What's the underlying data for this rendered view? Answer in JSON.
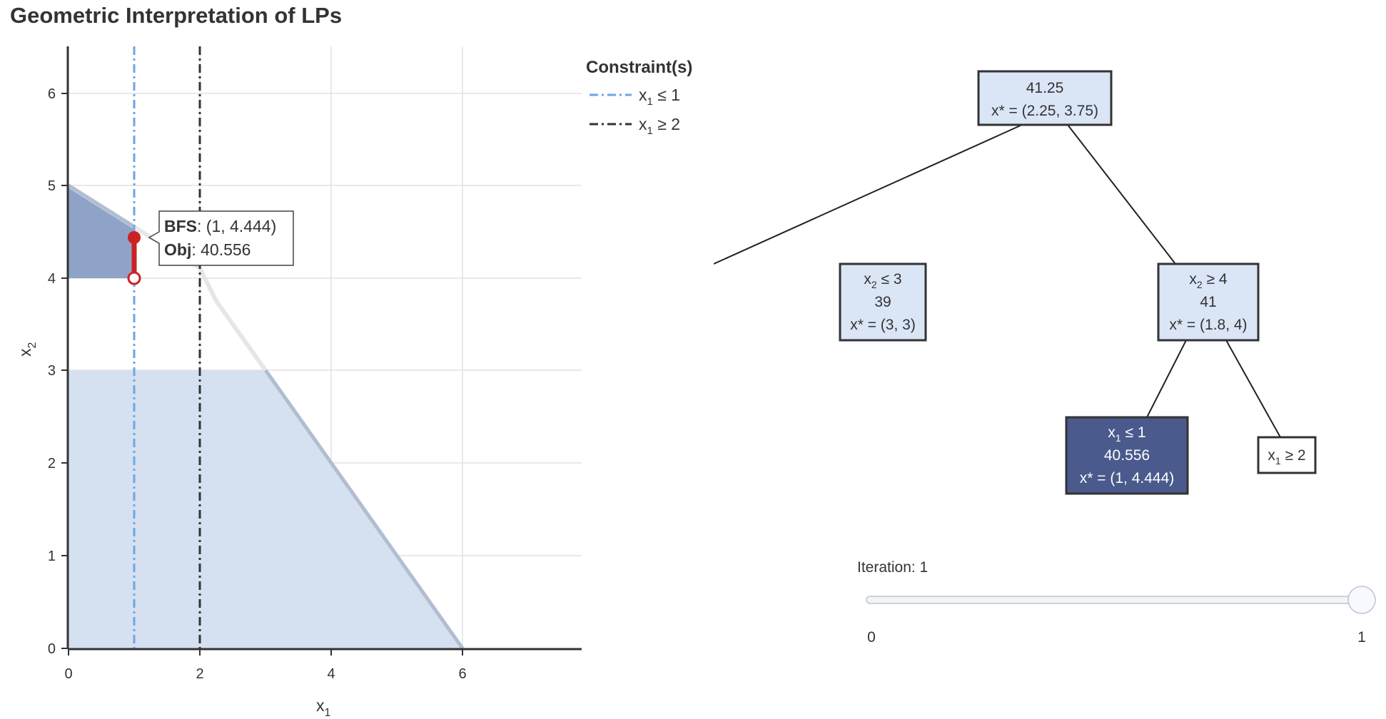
{
  "title": "Geometric Interpretation of LPs",
  "plot": {
    "xlabel": "x",
    "xlabel_sub": "1",
    "ylabel": "x",
    "ylabel_sub": "2",
    "x_ticks": [
      "0",
      "2",
      "4",
      "6"
    ],
    "y_ticks": [
      "0",
      "1",
      "2",
      "3",
      "4",
      "5",
      "6"
    ],
    "xlim": [
      0,
      7.8
    ],
    "ylim": [
      0,
      6.5
    ],
    "colors": {
      "relaxed_region": "#d5e0f0",
      "branch_region": "#8fa3c8",
      "boundary": "#b0bdd2",
      "bfs_marker": "#cc2222",
      "constraint_leq": "#6ea6e6",
      "constraint_geq": "#333333"
    },
    "tooltip": {
      "bfs_label": "BFS",
      "bfs_value": ": (1, 4.444)",
      "obj_label": "Obj",
      "obj_value": ": 40.556"
    }
  },
  "chart_data": {
    "type": "area",
    "regions": [
      {
        "points": [
          [
            0,
            0
          ],
          [
            0,
            3
          ],
          [
            3,
            3
          ],
          [
            6,
            0
          ]
        ]
      },
      {
        "points": [
          [
            0,
            4
          ],
          [
            0,
            5
          ],
          [
            1,
            4.444
          ],
          [
            1,
            4
          ]
        ]
      }
    ],
    "feasible_boundary": [
      [
        0,
        5
      ],
      [
        1,
        4.444
      ],
      [
        2,
        3.889
      ],
      [
        2.25,
        3.75
      ],
      [
        3,
        3
      ],
      [
        6,
        0
      ]
    ],
    "constraint_lines": [
      {
        "name": "x1 ≤ 1",
        "x": 1,
        "style": "dash-dot",
        "color": "#6ea6e6"
      },
      {
        "name": "x1 ≥ 2",
        "x": 2,
        "style": "dash-dot",
        "color": "#333333"
      }
    ],
    "bfs_point": [
      1,
      4.444
    ],
    "bfs_anchor": [
      1,
      4
    ],
    "objective": 40.556
  },
  "legend": {
    "title": "Constraint(s)",
    "items": [
      {
        "var": "x",
        "sub": "1",
        "op": " ≤ 1",
        "color": "#6ea6e6"
      },
      {
        "var": "x",
        "sub": "1",
        "op": " ≥ 2",
        "color": "#333333"
      }
    ]
  },
  "tree": {
    "root": {
      "line1": "41.25",
      "line2": "x* = (2.25, 3.75)"
    },
    "left": {
      "var": "x",
      "sub": "2",
      "op": " ≤ 3",
      "obj": "39",
      "sol": "x* = (3, 3)"
    },
    "right": {
      "var": "x",
      "sub": "2",
      "op": " ≥ 4",
      "obj": "41",
      "sol": "x* = (1.8, 4)"
    },
    "rl": {
      "var": "x",
      "sub": "1",
      "op": " ≤ 1",
      "obj": "40.556",
      "sol": "x* = (1, 4.444)"
    },
    "rr": {
      "var": "x",
      "sub": "1",
      "op": " ≥ 2"
    },
    "colors": {
      "node_fill": "#dae5f6",
      "selected_fill": "#4a5a8c",
      "leaf_fill": "#ffffff"
    }
  },
  "slider": {
    "label": "Iteration: 1",
    "min_label": "0",
    "max_label": "1",
    "value": 1,
    "min": 0,
    "max": 1
  }
}
